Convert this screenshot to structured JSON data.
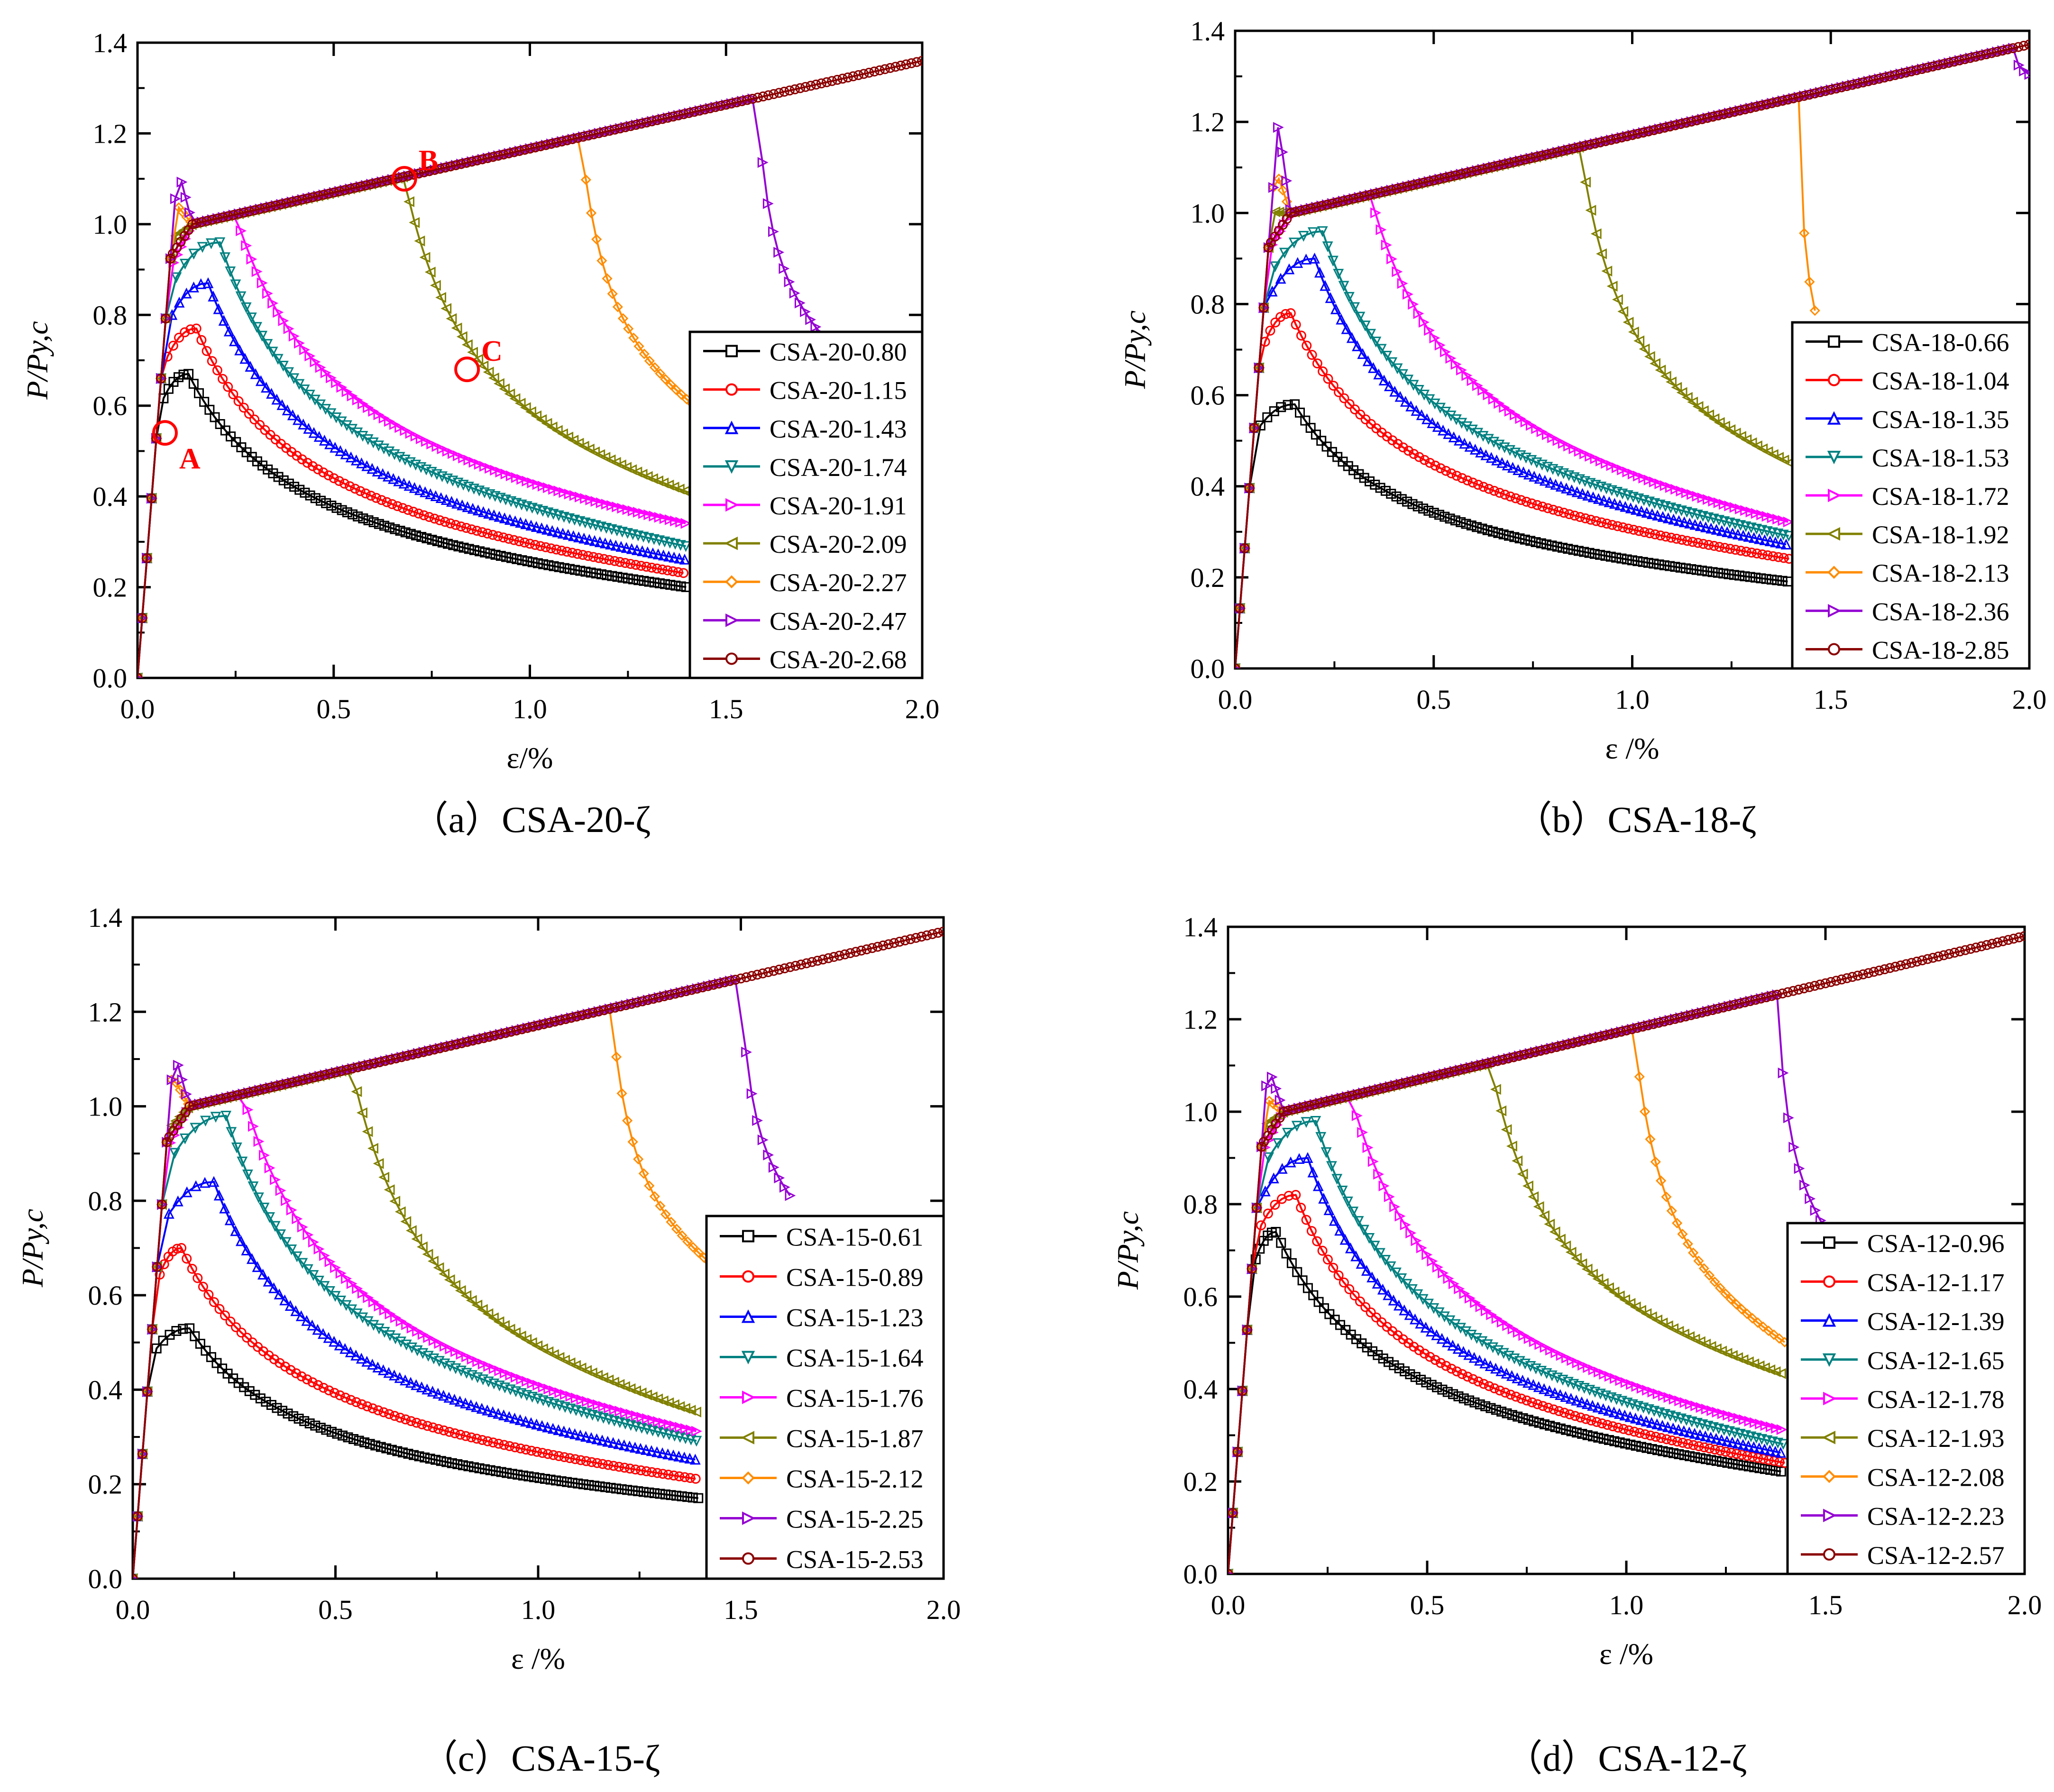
{
  "figure": {
    "captions": [
      "（a）CSA-20-ζ",
      "（b）CSA-18-ζ",
      "（c）CSA-15-ζ",
      "（d）CSA-12-ζ"
    ]
  },
  "colors": {
    "series": [
      "#000000",
      "#ff0000",
      "#0000ff",
      "#008080",
      "#ff00ff",
      "#808000",
      "#ff8c00",
      "#9400d3",
      "#8b0000"
    ],
    "annotation": "#ff0000"
  },
  "chart_data": [
    {
      "type": "line",
      "title": "（a）CSA-20-ζ",
      "xlabel": "ε/%",
      "ylabel": "P/Py,c",
      "xlim": [
        0,
        2.0
      ],
      "ylim": [
        0,
        1.4
      ],
      "x_ticks": [
        "0.0",
        "0.5",
        "1.0",
        "1.5",
        "2.0"
      ],
      "y_ticks": [
        "0.0",
        "0.2",
        "0.4",
        "0.6",
        "0.8",
        "1.0",
        "1.2",
        "1.4"
      ],
      "legend_position": "right-middle",
      "annotations": [
        {
          "label": "A",
          "x": 0.07,
          "y": 0.54
        },
        {
          "label": "B",
          "x": 0.68,
          "y": 1.1
        },
        {
          "label": "C",
          "x": 0.84,
          "y": 0.68
        }
      ],
      "series": [
        {
          "name": "CSA-20-0.80",
          "peak_x": 0.13,
          "peak_y": 0.67,
          "end_x": 1.4,
          "end_y": 0.2
        },
        {
          "name": "CSA-20-1.15",
          "peak_x": 0.15,
          "peak_y": 0.77,
          "end_x": 1.4,
          "end_y": 0.23
        },
        {
          "name": "CSA-20-1.43",
          "peak_x": 0.18,
          "peak_y": 0.87,
          "end_x": 1.4,
          "end_y": 0.26
        },
        {
          "name": "CSA-20-1.74",
          "peak_x": 0.21,
          "peak_y": 0.96,
          "end_x": 1.4,
          "end_y": 0.29
        },
        {
          "name": "CSA-20-1.91",
          "peak_x": 0.25,
          "peak_y": 1.02,
          "end_x": 1.4,
          "end_y": 0.34
        },
        {
          "name": "CSA-20-2.09",
          "peak_x": 0.68,
          "peak_y": 1.1,
          "end_x": 1.5,
          "end_y": 0.38
        },
        {
          "name": "CSA-20-2.27",
          "peak_x": 1.13,
          "peak_y": 1.19,
          "end_x": 1.5,
          "end_y": 0.55
        },
        {
          "name": "CSA-20-2.47",
          "peak_x": 1.58,
          "peak_y": 1.28,
          "end_x": 1.75,
          "end_y": 0.75
        },
        {
          "name": "CSA-20-2.68",
          "peak_x": 2.0,
          "peak_y": 1.36,
          "end_x": 2.0,
          "end_y": 1.36
        }
      ]
    },
    {
      "type": "line",
      "title": "（b）CSA-18-ζ",
      "xlabel": "ε /%",
      "ylabel": "P/Py,c",
      "xlim": [
        0,
        2.0
      ],
      "ylim": [
        0,
        1.4
      ],
      "x_ticks": [
        "0.0",
        "0.5",
        "1.0",
        "1.5",
        "2.0"
      ],
      "y_ticks": [
        "0.0",
        "0.2",
        "0.4",
        "0.6",
        "0.8",
        "1.0",
        "1.2",
        "1.4"
      ],
      "legend_position": "right-middle",
      "series": [
        {
          "name": "CSA-18-0.66",
          "peak_x": 0.15,
          "peak_y": 0.58,
          "end_x": 1.4,
          "end_y": 0.19
        },
        {
          "name": "CSA-18-1.04",
          "peak_x": 0.14,
          "peak_y": 0.78,
          "end_x": 1.4,
          "end_y": 0.24
        },
        {
          "name": "CSA-18-1.35",
          "peak_x": 0.2,
          "peak_y": 0.9,
          "end_x": 1.4,
          "end_y": 0.27
        },
        {
          "name": "CSA-18-1.53",
          "peak_x": 0.22,
          "peak_y": 0.96,
          "end_x": 1.4,
          "end_y": 0.29
        },
        {
          "name": "CSA-18-1.72",
          "peak_x": 0.34,
          "peak_y": 1.04,
          "end_x": 1.4,
          "end_y": 0.32
        },
        {
          "name": "CSA-18-1.92",
          "peak_x": 0.87,
          "peak_y": 1.14,
          "end_x": 1.4,
          "end_y": 0.45
        },
        {
          "name": "CSA-18-2.13",
          "peak_x": 1.42,
          "peak_y": 1.25,
          "end_x": 1.42,
          "end_y": 0.75
        },
        {
          "name": "CSA-18-2.36",
          "peak_x": 1.96,
          "peak_y": 1.36,
          "end_x": 2.0,
          "end_y": 1.3
        },
        {
          "name": "CSA-18-2.85",
          "peak_x": 2.0,
          "peak_y": 1.37,
          "end_x": 2.0,
          "end_y": 1.37
        }
      ]
    },
    {
      "type": "line",
      "title": "（c）CSA-15-ζ",
      "xlabel": "ε /%",
      "ylabel": "P/Py,c",
      "xlim": [
        0,
        2.0
      ],
      "ylim": [
        0,
        1.4
      ],
      "x_ticks": [
        "0.0",
        "0.5",
        "1.0",
        "1.5",
        "2.0"
      ],
      "y_ticks": [
        "0.0",
        "0.2",
        "0.4",
        "0.6",
        "0.8",
        "1.0",
        "1.2",
        "1.4"
      ],
      "legend_position": "right-middle",
      "series": [
        {
          "name": "CSA-15-0.61",
          "peak_x": 0.14,
          "peak_y": 0.53,
          "end_x": 1.4,
          "end_y": 0.17
        },
        {
          "name": "CSA-15-0.89",
          "peak_x": 0.12,
          "peak_y": 0.7,
          "end_x": 1.4,
          "end_y": 0.21
        },
        {
          "name": "CSA-15-1.23",
          "peak_x": 0.2,
          "peak_y": 0.84,
          "end_x": 1.4,
          "end_y": 0.25
        },
        {
          "name": "CSA-15-1.64",
          "peak_x": 0.23,
          "peak_y": 0.98,
          "end_x": 1.4,
          "end_y": 0.29
        },
        {
          "name": "CSA-15-1.76",
          "peak_x": 0.27,
          "peak_y": 1.03,
          "end_x": 1.4,
          "end_y": 0.31
        },
        {
          "name": "CSA-15-1.87",
          "peak_x": 0.54,
          "peak_y": 1.08,
          "end_x": 1.4,
          "end_y": 0.35
        },
        {
          "name": "CSA-15-2.12",
          "peak_x": 1.18,
          "peak_y": 1.21,
          "end_x": 1.45,
          "end_y": 0.65
        },
        {
          "name": "CSA-15-2.25",
          "peak_x": 1.5,
          "peak_y": 1.27,
          "end_x": 1.63,
          "end_y": 0.8
        },
        {
          "name": "CSA-15-2.53",
          "peak_x": 2.0,
          "peak_y": 1.37,
          "end_x": 2.0,
          "end_y": 1.37
        }
      ]
    },
    {
      "type": "line",
      "title": "（d）CSA-12-ζ",
      "xlabel": "ε /%",
      "ylabel": "P/Py,c",
      "xlim": [
        0,
        2.0
      ],
      "ylim": [
        0,
        1.4
      ],
      "x_ticks": [
        "0.0",
        "0.5",
        "1.0",
        "1.5",
        "2.0"
      ],
      "y_ticks": [
        "0.0",
        "0.2",
        "0.4",
        "0.6",
        "0.8",
        "1.0",
        "1.2",
        "1.4"
      ],
      "legend_position": "right-middle",
      "series": [
        {
          "name": "CSA-12-0.96",
          "peak_x": 0.12,
          "peak_y": 0.74,
          "end_x": 1.4,
          "end_y": 0.22
        },
        {
          "name": "CSA-12-1.17",
          "peak_x": 0.17,
          "peak_y": 0.82,
          "end_x": 1.4,
          "end_y": 0.24
        },
        {
          "name": "CSA-12-1.39",
          "peak_x": 0.2,
          "peak_y": 0.9,
          "end_x": 1.4,
          "end_y": 0.26
        },
        {
          "name": "CSA-12-1.65",
          "peak_x": 0.22,
          "peak_y": 0.98,
          "end_x": 1.4,
          "end_y": 0.28
        },
        {
          "name": "CSA-12-1.78",
          "peak_x": 0.31,
          "peak_y": 1.03,
          "end_x": 1.4,
          "end_y": 0.31
        },
        {
          "name": "CSA-12-1.93",
          "peak_x": 0.66,
          "peak_y": 1.1,
          "end_x": 1.4,
          "end_y": 0.43
        },
        {
          "name": "CSA-12-2.08",
          "peak_x": 1.02,
          "peak_y": 1.17,
          "end_x": 1.4,
          "end_y": 0.5
        },
        {
          "name": "CSA-12-2.23",
          "peak_x": 1.38,
          "peak_y": 1.25,
          "end_x": 1.52,
          "end_y": 0.72
        },
        {
          "name": "CSA-12-2.57",
          "peak_x": 2.0,
          "peak_y": 1.38,
          "end_x": 2.0,
          "end_y": 1.38
        }
      ]
    }
  ]
}
